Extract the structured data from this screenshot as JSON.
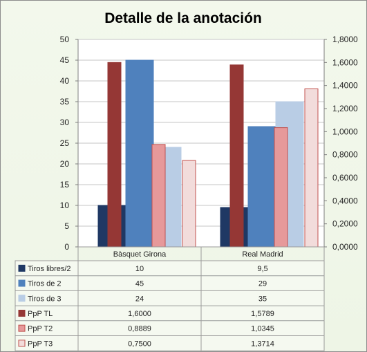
{
  "chart_data": {
    "type": "bar",
    "title": "Detalle de la anotación",
    "categories": [
      "Bàsquet Girona",
      "Real Madrid"
    ],
    "y_left": {
      "min": 0,
      "max": 50,
      "step": 5,
      "tick_labels": [
        "0",
        "5",
        "10",
        "15",
        "20",
        "25",
        "30",
        "35",
        "40",
        "45",
        "50"
      ]
    },
    "y_right": {
      "min": 0,
      "max": 1.8,
      "step": 0.2,
      "tick_labels": [
        "0,0000",
        "0,2000",
        "0,4000",
        "0,6000",
        "0,8000",
        "1,0000",
        "1,2000",
        "1,4000",
        "1,6000",
        "1,8000"
      ]
    },
    "series": [
      {
        "name": "Tiros libres/2",
        "axis": "left",
        "values": [
          10,
          9.5
        ],
        "labels": [
          "10",
          "9,5"
        ],
        "color": "#1f3864",
        "stroke": "#1f3864"
      },
      {
        "name": "Tiros de 2",
        "axis": "left",
        "values": [
          45,
          29
        ],
        "labels": [
          "45",
          "29"
        ],
        "color": "#4f81bd",
        "stroke": "#4f81bd"
      },
      {
        "name": "Tiros de 3",
        "axis": "left",
        "values": [
          24,
          35
        ],
        "labels": [
          "24",
          "35"
        ],
        "color": "#b9cde5",
        "stroke": "#b9cde5"
      },
      {
        "name": "PpP TL",
        "axis": "right",
        "values": [
          1.6,
          1.5789
        ],
        "labels": [
          "1,6000",
          "1,5789"
        ],
        "color": "#953735",
        "stroke": "#953735"
      },
      {
        "name": "PpP T2",
        "axis": "right",
        "values": [
          0.8889,
          1.0345
        ],
        "labels": [
          "0,8889",
          "1,0345"
        ],
        "color": "#e6999a",
        "stroke": "#c0504d"
      },
      {
        "name": "PpP T3",
        "axis": "right",
        "values": [
          0.75,
          1.3714
        ],
        "labels": [
          "0,7500",
          "1,3714"
        ],
        "color": "#f2dcdb",
        "stroke": "#c0504d"
      }
    ],
    "grid": true,
    "legend": "data-table-below"
  }
}
